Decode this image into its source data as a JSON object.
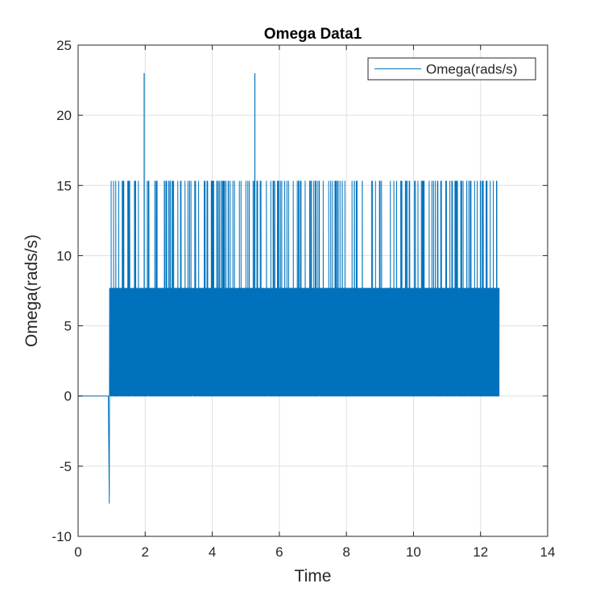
{
  "chart_data": {
    "type": "line",
    "title": "Omega Data1",
    "xlabel": "Time",
    "ylabel": "Omega(rads/s)",
    "xlim": [
      0,
      14
    ],
    "ylim": [
      -10,
      25
    ],
    "xticks": [
      0,
      2,
      4,
      6,
      8,
      10,
      12,
      14
    ],
    "yticks": [
      -10,
      -5,
      0,
      5,
      10,
      15,
      20,
      25
    ],
    "grid": true,
    "legend_position": "top-right",
    "series": [
      {
        "name": "Omega(rads/s)",
        "color": "#0072BD",
        "t_start": 0.9,
        "t_end": 12.55,
        "levels": [
          0,
          7.67,
          15.33
        ],
        "baseline": 0,
        "min_value": -7.67,
        "min_time": 0.93,
        "spikes": [
          {
            "x": 1.97,
            "y": 23.0
          },
          {
            "x": 5.27,
            "y": 23.0
          }
        ]
      }
    ]
  }
}
